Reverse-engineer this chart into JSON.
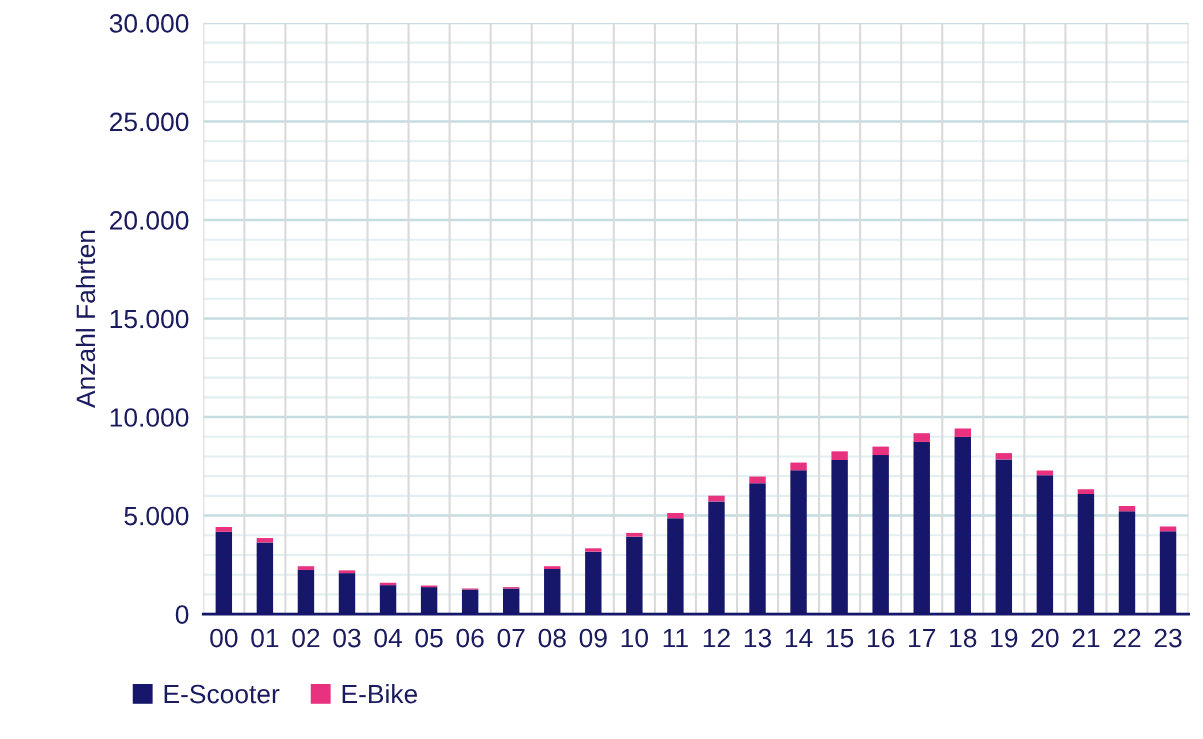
{
  "chart_data": {
    "type": "bar",
    "stacked": true,
    "ylabel": "Anzahl Fahrten",
    "categories": [
      "00",
      "01",
      "02",
      "03",
      "04",
      "05",
      "06",
      "07",
      "08",
      "09",
      "10",
      "11",
      "12",
      "13",
      "14",
      "15",
      "16",
      "17",
      "18",
      "19",
      "20",
      "21",
      "22",
      "23"
    ],
    "series": [
      {
        "name": "E-Scooter",
        "color": "#16166b",
        "values": [
          4180,
          3640,
          2240,
          2080,
          1470,
          1370,
          1250,
          1300,
          2290,
          3170,
          3930,
          4860,
          5720,
          6640,
          7300,
          7820,
          8070,
          8740,
          8990,
          7850,
          7050,
          6090,
          5220,
          4200
        ]
      },
      {
        "name": "E-Bike",
        "color": "#e8317f",
        "values": [
          240,
          220,
          190,
          140,
          120,
          80,
          50,
          70,
          140,
          170,
          190,
          270,
          290,
          340,
          390,
          440,
          430,
          440,
          430,
          320,
          240,
          240,
          260,
          240
        ]
      }
    ],
    "ylim": [
      0,
      30000
    ],
    "yticks": [
      {
        "value": 0,
        "label": "0"
      },
      {
        "value": 1000,
        "label": null
      },
      {
        "value": 2000,
        "label": null
      },
      {
        "value": 3000,
        "label": null
      },
      {
        "value": 4000,
        "label": null
      },
      {
        "value": 5000,
        "label": "5.000"
      },
      {
        "value": 6000,
        "label": null
      },
      {
        "value": 7000,
        "label": null
      },
      {
        "value": 8000,
        "label": null
      },
      {
        "value": 9000,
        "label": null
      },
      {
        "value": 10000,
        "label": "10.000"
      },
      {
        "value": 11000,
        "label": null
      },
      {
        "value": 12000,
        "label": null
      },
      {
        "value": 13000,
        "label": null
      },
      {
        "value": 14000,
        "label": null
      },
      {
        "value": 15000,
        "label": "15.000"
      },
      {
        "value": 16000,
        "label": null
      },
      {
        "value": 17000,
        "label": null
      },
      {
        "value": 18000,
        "label": null
      },
      {
        "value": 19000,
        "label": null
      },
      {
        "value": 20000,
        "label": "20.000"
      },
      {
        "value": 21000,
        "label": null
      },
      {
        "value": 22000,
        "label": null
      },
      {
        "value": 23000,
        "label": null
      },
      {
        "value": 24000,
        "label": null
      },
      {
        "value": 25000,
        "label": "25.000"
      },
      {
        "value": 26000,
        "label": null
      },
      {
        "value": 27000,
        "label": null
      },
      {
        "value": 28000,
        "label": null
      },
      {
        "value": 29000,
        "label": null
      },
      {
        "value": 30000,
        "label": "30.000"
      }
    ],
    "grid": true,
    "legend": "bottom left"
  }
}
